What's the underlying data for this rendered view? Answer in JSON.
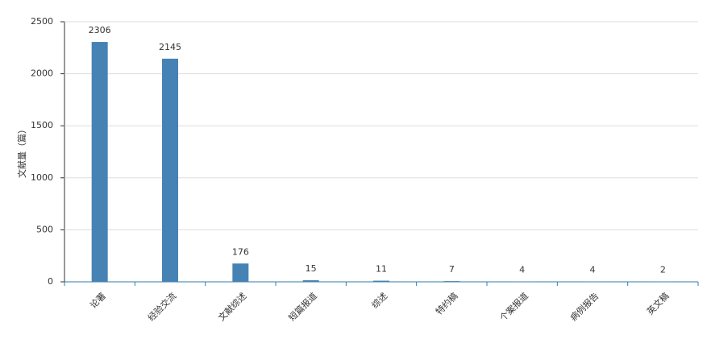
{
  "chart_data": {
    "type": "bar",
    "y_label": "文献量（篇）",
    "categories": [
      "论著",
      "经验交流",
      "文献综述",
      "短篇报道",
      "综述",
      "特约稿",
      "个案报道",
      "病例报告",
      "英文稿"
    ],
    "values": [
      2306,
      2145,
      176,
      15,
      11,
      7,
      4,
      4,
      2
    ],
    "color": "#4682b4",
    "ylim": [
      0,
      2500
    ],
    "yticks": [
      0,
      500,
      1000,
      1500,
      2000,
      2500
    ],
    "grid": true
  }
}
